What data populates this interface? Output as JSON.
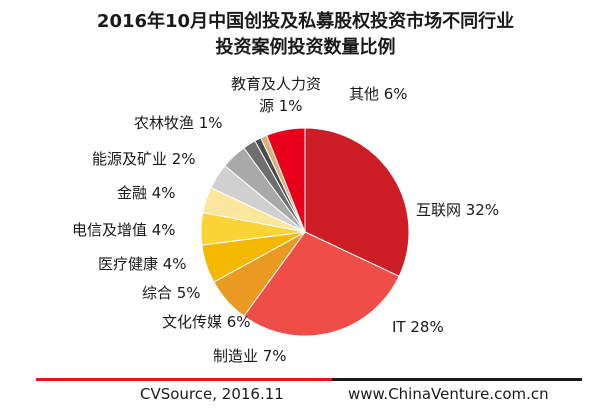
{
  "title_line1": "2016年10月中国创投及私募股权投资市场不同行业",
  "title_line2": "投资案例投资数量比例",
  "footer_source": "CVSource, 2016.11",
  "footer_url": "www.ChinaVenture.com.cn",
  "chart_data": {
    "type": "pie",
    "title": "2016年10月中国创投及私募股权投资市场不同行业投资案例投资数量比例",
    "slices": [
      {
        "label": "互联网 32%",
        "category": "互联网",
        "value": 32,
        "color": "#cd1e25"
      },
      {
        "label": "IT 28%",
        "category": "IT",
        "value": 28,
        "color": "#ef4e48"
      },
      {
        "label": "制造业 7%",
        "category": "制造业",
        "value": 7,
        "color": "#ea9a22"
      },
      {
        "label": "文化传媒 6%",
        "category": "文化传媒",
        "value": 6,
        "color": "#f5b800"
      },
      {
        "label": "综合 5%",
        "category": "综合",
        "value": 5,
        "color": "#fad437"
      },
      {
        "label": "医疗健康 4%",
        "category": "医疗健康",
        "value": 4,
        "color": "#fbe79c"
      },
      {
        "label": "电信及增值 4%",
        "category": "电信及增值",
        "value": 4,
        "color": "#d0d0d0"
      },
      {
        "label": "金融 4%",
        "category": "金融",
        "value": 4,
        "color": "#a9a9a9"
      },
      {
        "label": "能源及矿业 2%",
        "category": "能源及矿业",
        "value": 2,
        "color": "#6e6e6e"
      },
      {
        "label": "农林牧渔 1%",
        "category": "农林牧渔",
        "value": 1,
        "color": "#4a4a4a"
      },
      {
        "label_lines": [
          "教育及人力资",
          "源 1%"
        ],
        "category": "教育及人力资源",
        "value": 1,
        "color": "#d9b07a"
      },
      {
        "label": "其他 6%",
        "category": "其他",
        "value": 6,
        "color": "#e8001a"
      }
    ],
    "slice_order": "clockwise from 12 o'clock",
    "legend": "none (labels next to slices)"
  }
}
